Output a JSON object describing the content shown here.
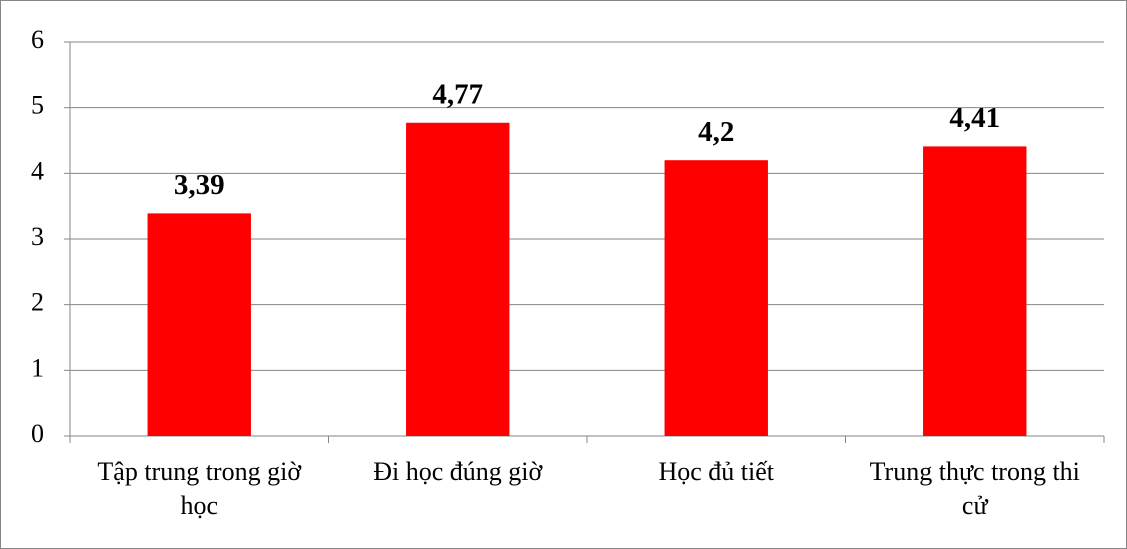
{
  "chart_data": {
    "type": "bar",
    "categories": [
      "Tập trung trong giờ học",
      "Đi học đúng giờ",
      "Học đủ tiết",
      "Trung thực trong thi cử"
    ],
    "values": [
      3.39,
      4.77,
      4.2,
      4.41
    ],
    "value_labels": [
      "3,39",
      "4,77",
      "4,2",
      "4,41"
    ],
    "color": "#ff0000",
    "ylim": [
      0,
      6
    ],
    "yticks": [
      0,
      1,
      2,
      3,
      4,
      5,
      6
    ],
    "grid": true
  }
}
